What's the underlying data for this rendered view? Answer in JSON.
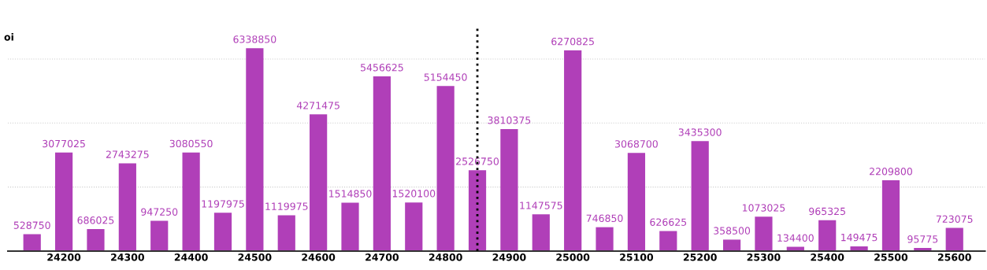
{
  "chart_data": {
    "type": "bar",
    "ylabel": "oi",
    "x": [
      24150,
      24200,
      24250,
      24300,
      24350,
      24400,
      24450,
      24500,
      24550,
      24600,
      24650,
      24700,
      24750,
      24800,
      24850,
      24900,
      24950,
      25000,
      25050,
      25100,
      25150,
      25200,
      25250,
      25300,
      25350,
      25400,
      25450,
      25500,
      25550,
      25600
    ],
    "values": [
      528750,
      3077025,
      686025,
      2743275,
      947250,
      3080550,
      1197975,
      6338850,
      1119975,
      4271475,
      1514850,
      5456625,
      1520100,
      5154450,
      2526750,
      3810375,
      1147575,
      6270825,
      746850,
      3068700,
      626625,
      3435300,
      358500,
      1073025,
      134400,
      965325,
      149475,
      2209800,
      95775,
      723075
    ],
    "color": "#b03fb8",
    "xlim": [
      24112,
      25648
    ],
    "xticks": [
      24200,
      24300,
      24400,
      24500,
      24600,
      24700,
      24800,
      24900,
      25000,
      25100,
      25200,
      25300,
      25400,
      25500,
      25600
    ],
    "ylim": [
      0,
      7000000
    ],
    "yticks": [
      {
        "value": 2000000,
        "label": null
      },
      {
        "value": 4000000,
        "label": null
      },
      {
        "value": 6000000,
        "label": null
      }
    ],
    "grid": "y",
    "data_labels": true,
    "ref_lines": [
      {
        "axis": "x",
        "value": 24850,
        "color": "#000000",
        "line_style": "dotted"
      }
    ]
  }
}
